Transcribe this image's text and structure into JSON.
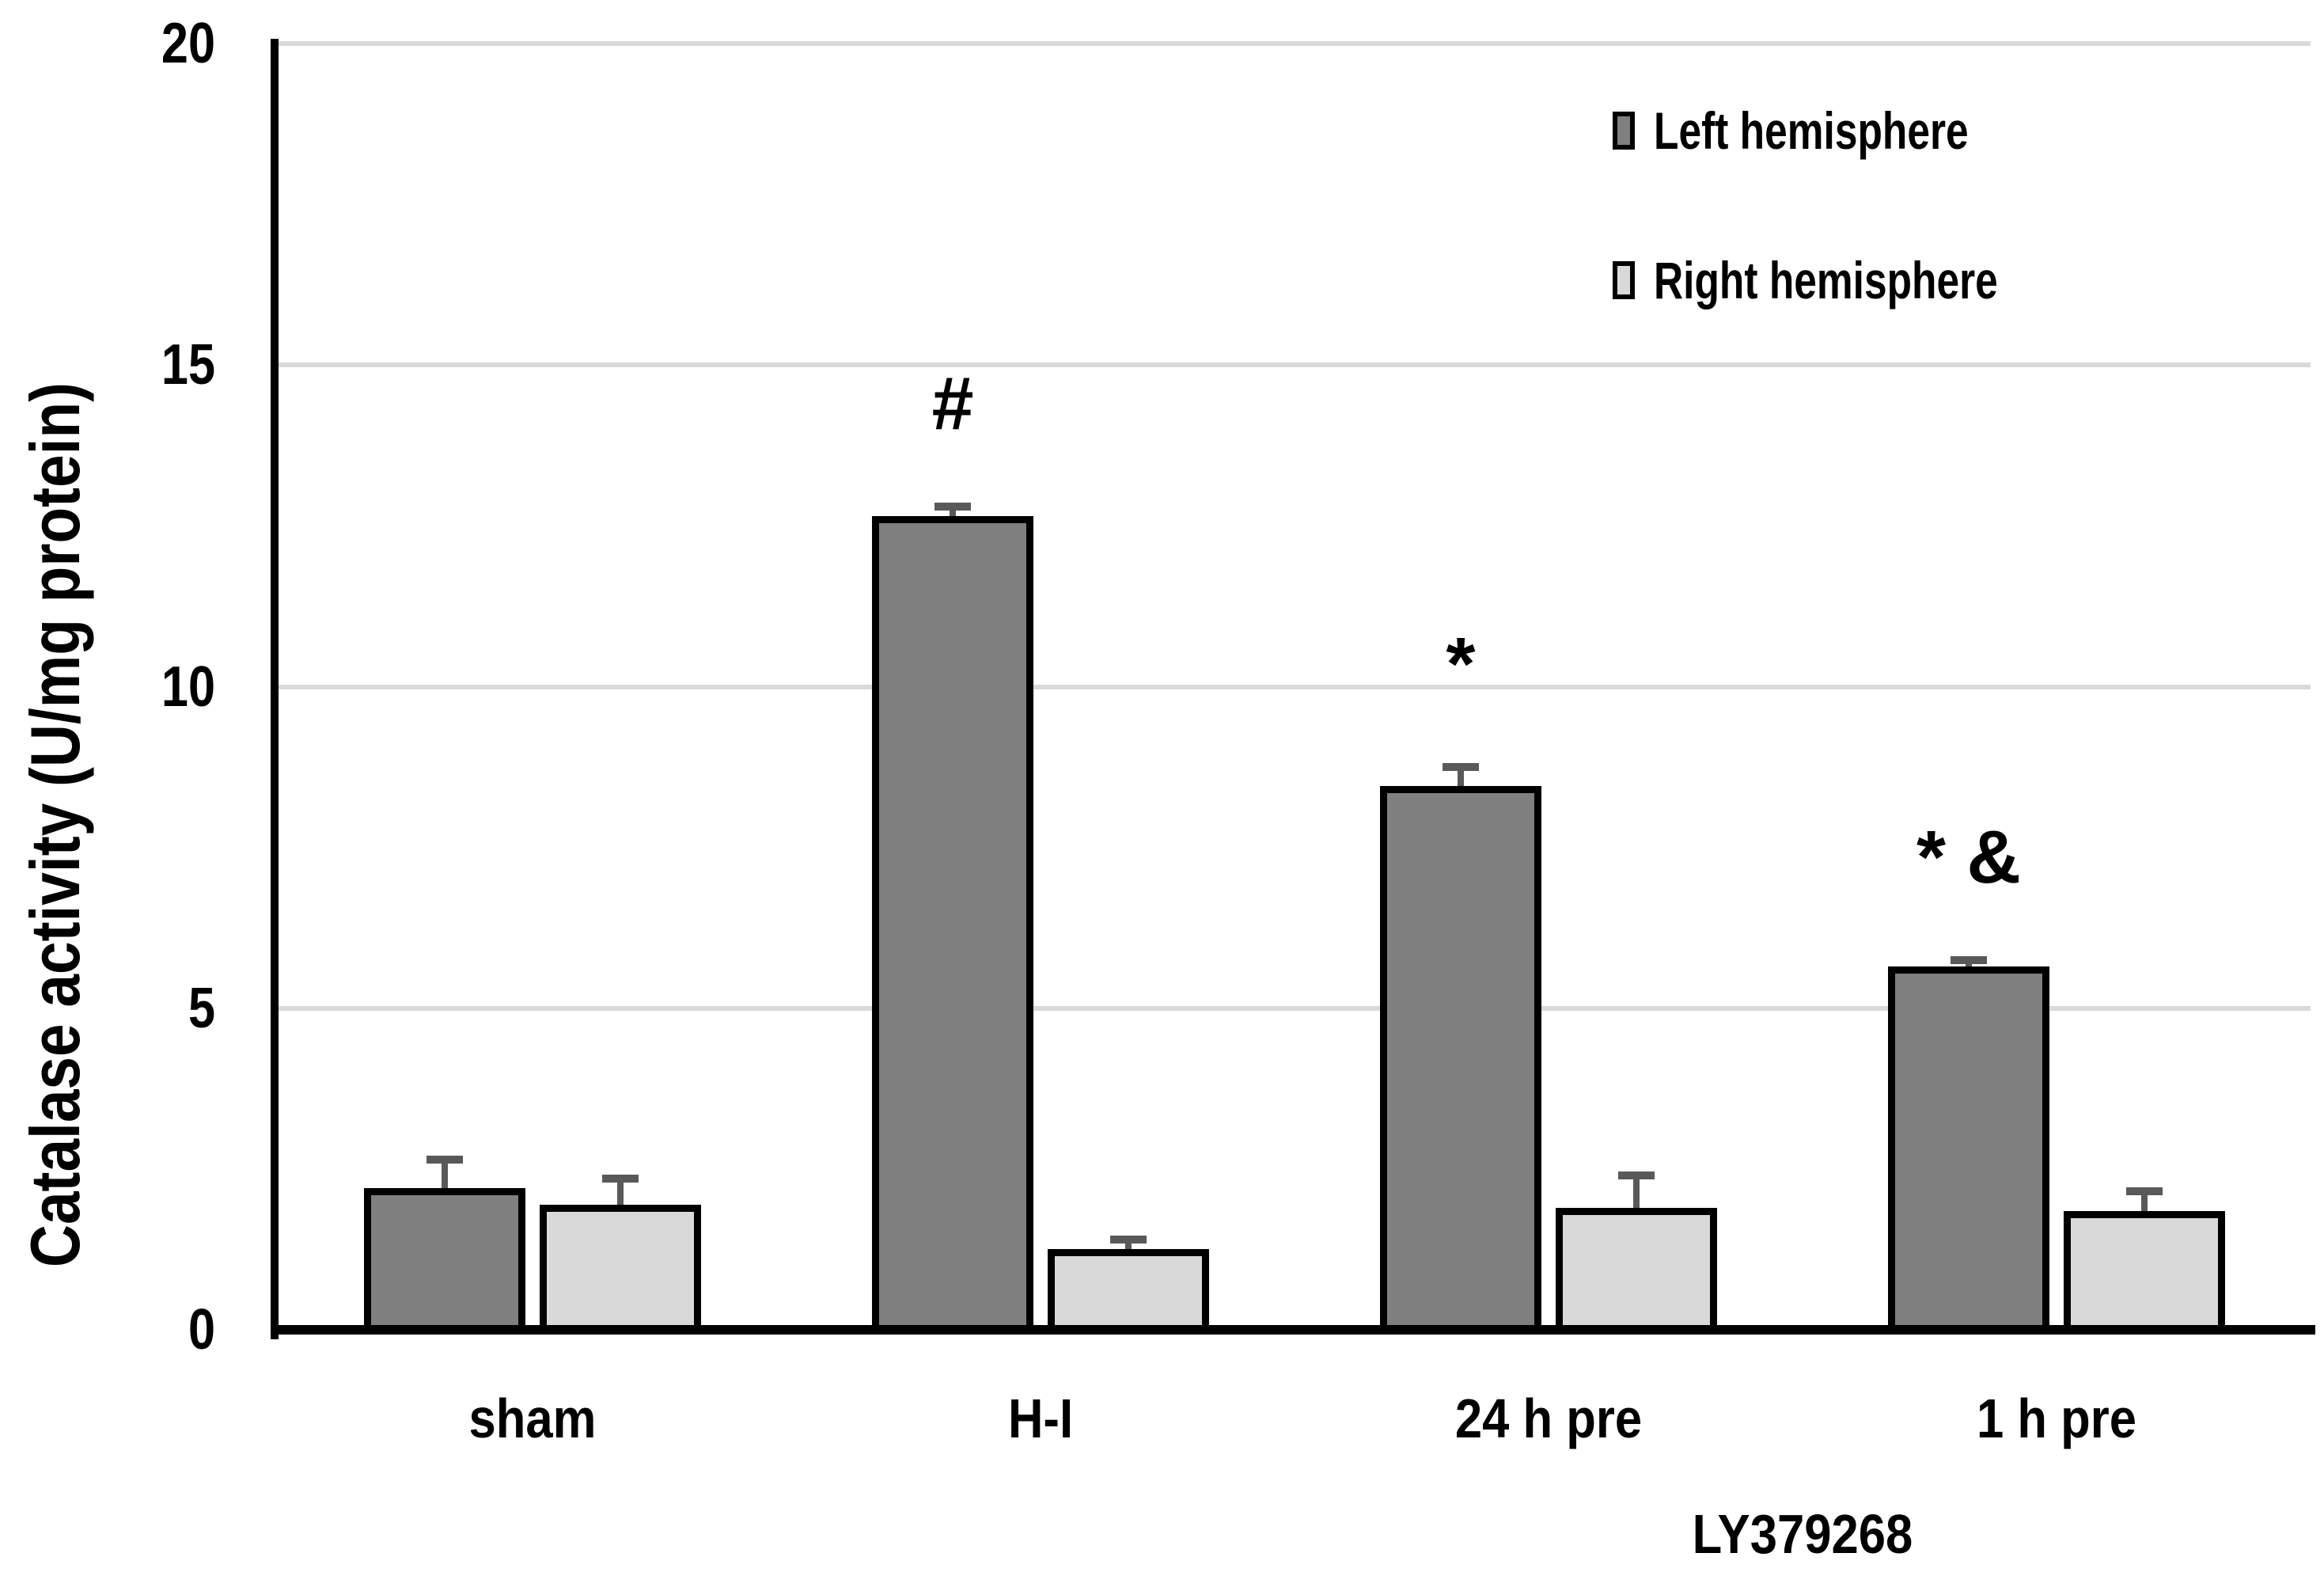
{
  "chart_data": {
    "type": "bar",
    "title": "",
    "ylabel": "Catalase activity (U/mg protein)",
    "xlabel": "",
    "group_sub_label": "LY379268",
    "ylim": [
      0,
      20
    ],
    "yticks": [
      0,
      5,
      10,
      15,
      20
    ],
    "grid": true,
    "categories": [
      "sham",
      "H-I",
      "24 h pre",
      "1 h pre"
    ],
    "series": [
      {
        "name": "Left hemisphere",
        "color": "#7f7f7f",
        "values": [
          2.2,
          12.65,
          8.45,
          5.65
        ],
        "errors": [
          0.45,
          0.15,
          0.3,
          0.1
        ]
      },
      {
        "name": "Right hemisphere",
        "color": "#d9d9d9",
        "values": [
          1.95,
          1.25,
          1.9,
          1.85
        ],
        "errors": [
          0.4,
          0.15,
          0.5,
          0.3
        ]
      }
    ],
    "annotations": [
      {
        "text": "#",
        "category": "H-I",
        "series": "Left hemisphere"
      },
      {
        "text": "*",
        "category": "24 h pre",
        "series": "Left hemisphere"
      },
      {
        "text": "* &",
        "category": "1 h pre",
        "series": "Left hemisphere"
      }
    ],
    "legend": {
      "position": "top-right",
      "items": [
        "Left hemisphere",
        "Right hemisphere"
      ]
    },
    "colors": {
      "axis": "#000000",
      "grid": "#d9d9d9",
      "error_bar": "#595959",
      "bar_border": "#000000",
      "background": "#ffffff"
    }
  }
}
